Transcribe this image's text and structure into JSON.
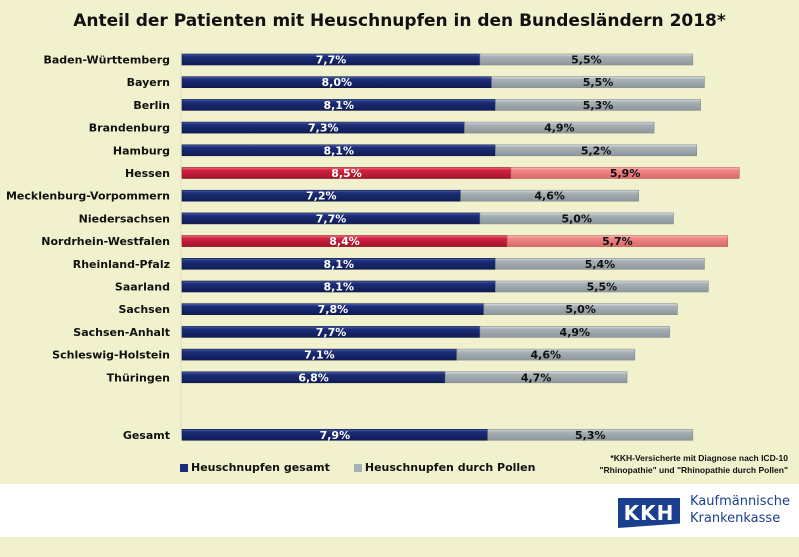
{
  "chart_data": {
    "type": "bar",
    "orientation": "horizontal",
    "stacked": true,
    "title": "Anteil der Patienten mit Heuschnupfen in den Bundesländern 2018*",
    "xlabel": "",
    "ylabel": "",
    "grid": false,
    "legend_position": "bottom",
    "categories": [
      "Baden-Württemberg",
      "Bayern",
      "Berlin",
      "Brandenburg",
      "Hamburg",
      "Hessen",
      "Mecklenburg-Vorpommern",
      "Niedersachsen",
      "Nordrhein-Westfalen",
      "Rheinland-Pfalz",
      "Saarland",
      "Sachsen",
      "Sachsen-Anhalt",
      "Schleswig-Holstein",
      "Thüringen",
      "Gesamt"
    ],
    "highlighted": [
      "Hessen",
      "Nordrhein-Westfalen"
    ],
    "series": [
      {
        "name": "Heuschnupfen gesamt",
        "values": [
          7.7,
          8.0,
          8.1,
          7.3,
          8.1,
          8.5,
          7.2,
          7.7,
          8.4,
          8.1,
          8.1,
          7.8,
          7.7,
          7.1,
          6.8,
          7.9
        ],
        "labels": [
          "7,7%",
          "8,0%",
          "8,1%",
          "7,3%",
          "8,1%",
          "8,5%",
          "7,2%",
          "7,7%",
          "8,4%",
          "8,1%",
          "8,1%",
          "7,8%",
          "7,7%",
          "7,1%",
          "6,8%",
          "7,9%"
        ]
      },
      {
        "name": "Heuschnupfen durch Pollen",
        "values": [
          5.5,
          5.5,
          5.3,
          4.9,
          5.2,
          5.9,
          4.6,
          5.0,
          5.7,
          5.4,
          5.5,
          5.0,
          4.9,
          4.6,
          4.7,
          5.3
        ],
        "labels": [
          "5,5%",
          "5,5%",
          "5,3%",
          "4,9%",
          "5,2%",
          "5,9%",
          "4,6%",
          "5,0%",
          "5,7%",
          "5,4%",
          "5,5%",
          "5,0%",
          "4,9%",
          "4,6%",
          "4,7%",
          "5,3%"
        ]
      }
    ],
    "xlim": [
      0,
      14.5
    ]
  },
  "colors": {
    "series_a": "#1c2d78",
    "series_b": "#a7b0b4",
    "highlight_a": "#d42340",
    "highlight_b": "#f08686",
    "background": "#f1f1cd"
  },
  "footnote": {
    "line1": "*KKH-Versicherte mit Diagnose nach ICD-10",
    "line2": "\"Rhinopathie\" und \"Rhinopathie durch Pollen\""
  },
  "logo": {
    "mark": "KKH",
    "line1": "Kaufmännische",
    "line2": "Krankenkasse"
  }
}
